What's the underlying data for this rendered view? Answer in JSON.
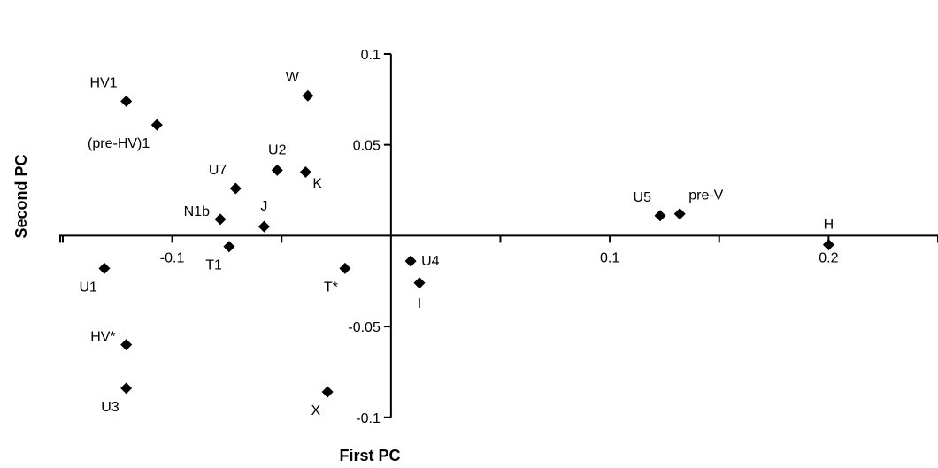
{
  "chart_data": {
    "type": "scatter",
    "title": "",
    "xlabel": "First PC",
    "ylabel": "Second PC",
    "xlim": [
      -0.1516,
      0.25
    ],
    "ylim": [
      -0.1,
      0.1
    ],
    "x_ticks": [
      -0.1,
      0.1,
      0.2
    ],
    "x_tick_labels": [
      "-0.1",
      "0.1",
      "0.2"
    ],
    "y_ticks": [
      0.1,
      0.05,
      -0.05,
      -0.1
    ],
    "y_tick_labels": [
      "0.1",
      "0.05",
      "-0.05",
      "-0.1"
    ],
    "grid": false,
    "legend": "none",
    "marker": "diamond",
    "points": [
      {
        "label": "HV1",
        "x": -0.121,
        "y": 0.074,
        "pos": "up-left"
      },
      {
        "label": "(pre-HV)1",
        "x": -0.107,
        "y": 0.061,
        "pos": "down-left"
      },
      {
        "label": "W",
        "x": -0.038,
        "y": 0.077,
        "pos": "up-left"
      },
      {
        "label": "U2",
        "x": -0.052,
        "y": 0.036,
        "pos": "up"
      },
      {
        "label": "U7",
        "x": -0.071,
        "y": 0.026,
        "pos": "up-left"
      },
      {
        "label": "K",
        "x": -0.039,
        "y": 0.035,
        "pos": "down-right"
      },
      {
        "label": "N1b",
        "x": -0.078,
        "y": 0.009,
        "pos": "left"
      },
      {
        "label": "J",
        "x": -0.058,
        "y": 0.005,
        "pos": "up"
      },
      {
        "label": "T1",
        "x": -0.074,
        "y": -0.006,
        "pos": "down-left"
      },
      {
        "label": "U1",
        "x": -0.131,
        "y": -0.018,
        "pos": "down-left"
      },
      {
        "label": "T*",
        "x": -0.021,
        "y": -0.018,
        "pos": "down-left"
      },
      {
        "label": "U4",
        "x": 0.009,
        "y": -0.014,
        "pos": "right"
      },
      {
        "label": "I",
        "x": 0.013,
        "y": -0.026,
        "pos": "down"
      },
      {
        "label": "HV*",
        "x": -0.121,
        "y": -0.06,
        "pos": "left"
      },
      {
        "label": "U3",
        "x": -0.121,
        "y": -0.084,
        "pos": "down-left"
      },
      {
        "label": "X",
        "x": -0.029,
        "y": -0.086,
        "pos": "down-left"
      },
      {
        "label": "U5",
        "x": 0.123,
        "y": 0.011,
        "pos": "up-left"
      },
      {
        "label": "pre-V",
        "x": 0.132,
        "y": 0.012,
        "pos": "up-right"
      },
      {
        "label": "H",
        "x": 0.2,
        "y": -0.005,
        "pos": "up"
      }
    ]
  }
}
